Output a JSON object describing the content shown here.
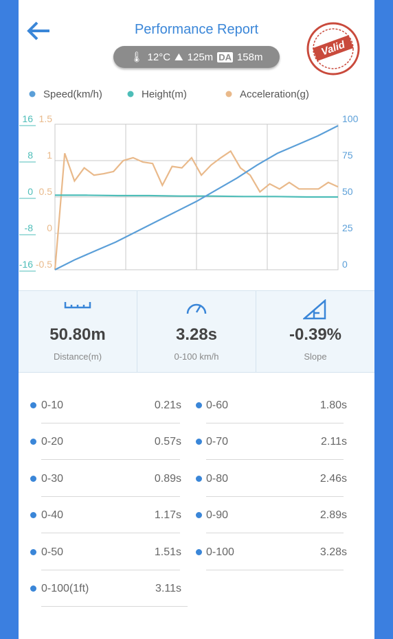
{
  "header": {
    "title": "Performance Report",
    "temperature": "12°C",
    "altitude": "125m",
    "da_badge": "DA",
    "density_altitude": "158m",
    "stamp": "Valid"
  },
  "chart_data": {
    "type": "line",
    "series": [
      {
        "name": "Speed(km/h)",
        "color": "#5b9fd8",
        "ylim": [
          0,
          100
        ],
        "yticks": [
          0,
          25,
          50,
          75,
          100
        ],
        "values": [
          0,
          7,
          13,
          19,
          26,
          33,
          40,
          47,
          55,
          63,
          72,
          80,
          86,
          92,
          99
        ]
      },
      {
        "name": "Height(m)",
        "color": "#4dbdb8",
        "ylim": [
          -16,
          16
        ],
        "yticks": [
          -16,
          -8,
          0,
          8,
          16
        ],
        "values": [
          0.4,
          0.4,
          0.3,
          0.3,
          0.2,
          0.2,
          0.1,
          0.1,
          0,
          0
        ]
      },
      {
        "name": "Acceleration(g)",
        "color": "#e9b98a",
        "ylim": [
          -0.5,
          1.5
        ],
        "yticks": [
          -0.5,
          0,
          0.5,
          1,
          1.5
        ],
        "values": [
          -0.5,
          1.1,
          0.72,
          0.9,
          0.8,
          0.82,
          0.85,
          1.0,
          1.04,
          0.98,
          0.96,
          0.66,
          0.92,
          0.9,
          1.04,
          0.8,
          0.94,
          1.04,
          1.13,
          0.9,
          0.8,
          0.57,
          0.68,
          0.61,
          0.7,
          0.61,
          0.61,
          0.61,
          0.7,
          0.64
        ]
      }
    ],
    "grid": true
  },
  "stats": [
    {
      "value": "50.80m",
      "label": "Distance(m)"
    },
    {
      "value": "3.28s",
      "label": "0-100 km/h"
    },
    {
      "value": "-0.39%",
      "label": "Slope"
    }
  ],
  "splits": [
    {
      "label": "0-10",
      "time": "0.21s"
    },
    {
      "label": "0-60",
      "time": "1.80s"
    },
    {
      "label": "0-20",
      "time": "0.57s"
    },
    {
      "label": "0-70",
      "time": "2.11s"
    },
    {
      "label": "0-30",
      "time": "0.89s"
    },
    {
      "label": "0-80",
      "time": "2.46s"
    },
    {
      "label": "0-40",
      "time": "1.17s"
    },
    {
      "label": "0-90",
      "time": "2.89s"
    },
    {
      "label": "0-50",
      "time": "1.51s"
    },
    {
      "label": "0-100",
      "time": "3.28s"
    },
    {
      "label": "0-100(1ft)",
      "time": "3.11s"
    }
  ]
}
